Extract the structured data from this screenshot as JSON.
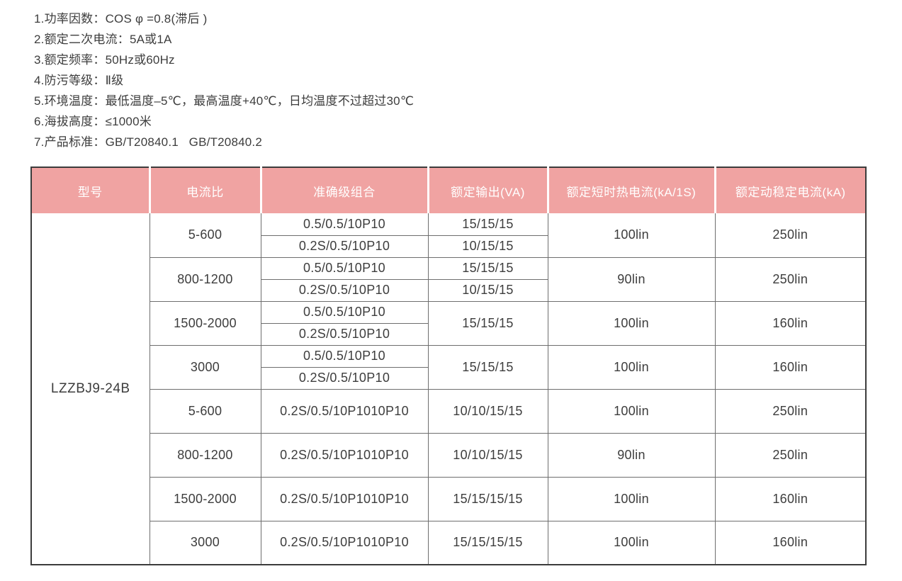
{
  "colors": {
    "header_bg": "#f0a3a2",
    "header_text": "#ffffff",
    "body_text": "#3d3d3d",
    "grid_line": "#6e6e6e",
    "outer_border": "#3c3c3c"
  },
  "notes": {
    "items": [
      "1.功率因数：COS φ =0.8(滞后 )",
      "2.额定二次电流：5A或1A",
      "3.额定频率：50Hz或60Hz",
      "4.防污等级：Ⅱ级",
      "5.环境温度：最低温度–5℃，最高温度+40℃，日均温度不过超过30℃",
      "6.海拔高度：≤1000米",
      "7.产品标准：GB/T20840.1   GB/T20840.2"
    ]
  },
  "table": {
    "model": "LZZBJ9-24B",
    "headers": [
      "型号",
      "电流比",
      "准确级组合",
      "额定输出(VA)",
      "额定短时热电流(kA/1S)",
      "额定动稳定电流(kA)"
    ],
    "groups": [
      {
        "ratio": "5-600",
        "merged_output": false,
        "rows": [
          {
            "accuracy": "0.5/0.5/10P10",
            "output": "15/15/15"
          },
          {
            "accuracy": "0.2S/0.5/10P10",
            "output": "10/15/15"
          }
        ],
        "thermal": "100lin",
        "dynamic": "250lin"
      },
      {
        "ratio": "800-1200",
        "merged_output": false,
        "rows": [
          {
            "accuracy": "0.5/0.5/10P10",
            "output": "15/15/15"
          },
          {
            "accuracy": "0.2S/0.5/10P10",
            "output": "10/15/15"
          }
        ],
        "thermal": "90lin",
        "dynamic": "250lin"
      },
      {
        "ratio": "1500-2000",
        "merged_output": true,
        "rows": [
          {
            "accuracy": "0.5/0.5/10P10"
          },
          {
            "accuracy": "0.2S/0.5/10P10"
          }
        ],
        "output": "15/15/15",
        "thermal": "100lin",
        "dynamic": "160lin"
      },
      {
        "ratio": "3000",
        "merged_output": true,
        "rows": [
          {
            "accuracy": "0.5/0.5/10P10"
          },
          {
            "accuracy": "0.2S/0.5/10P10"
          }
        ],
        "output": "15/15/15",
        "thermal": "100lin",
        "dynamic": "160lin"
      },
      {
        "ratio": "5-600",
        "merged_output": true,
        "rows": [
          {
            "accuracy": "0.2S/0.5/10P1010P10"
          }
        ],
        "output": "10/10/15/15",
        "thermal": "100lin",
        "dynamic": "250lin"
      },
      {
        "ratio": "800-1200",
        "merged_output": true,
        "rows": [
          {
            "accuracy": "0.2S/0.5/10P1010P10"
          }
        ],
        "output": "10/10/15/15",
        "thermal": "90lin",
        "dynamic": "250lin"
      },
      {
        "ratio": "1500-2000",
        "merged_output": true,
        "rows": [
          {
            "accuracy": "0.2S/0.5/10P1010P10"
          }
        ],
        "output": "15/15/15/15",
        "thermal": "100lin",
        "dynamic": "160lin"
      },
      {
        "ratio": "3000",
        "merged_output": true,
        "rows": [
          {
            "accuracy": "0.2S/0.5/10P1010P10"
          }
        ],
        "output": "15/15/15/15",
        "thermal": "100lin",
        "dynamic": "160lin"
      }
    ]
  }
}
